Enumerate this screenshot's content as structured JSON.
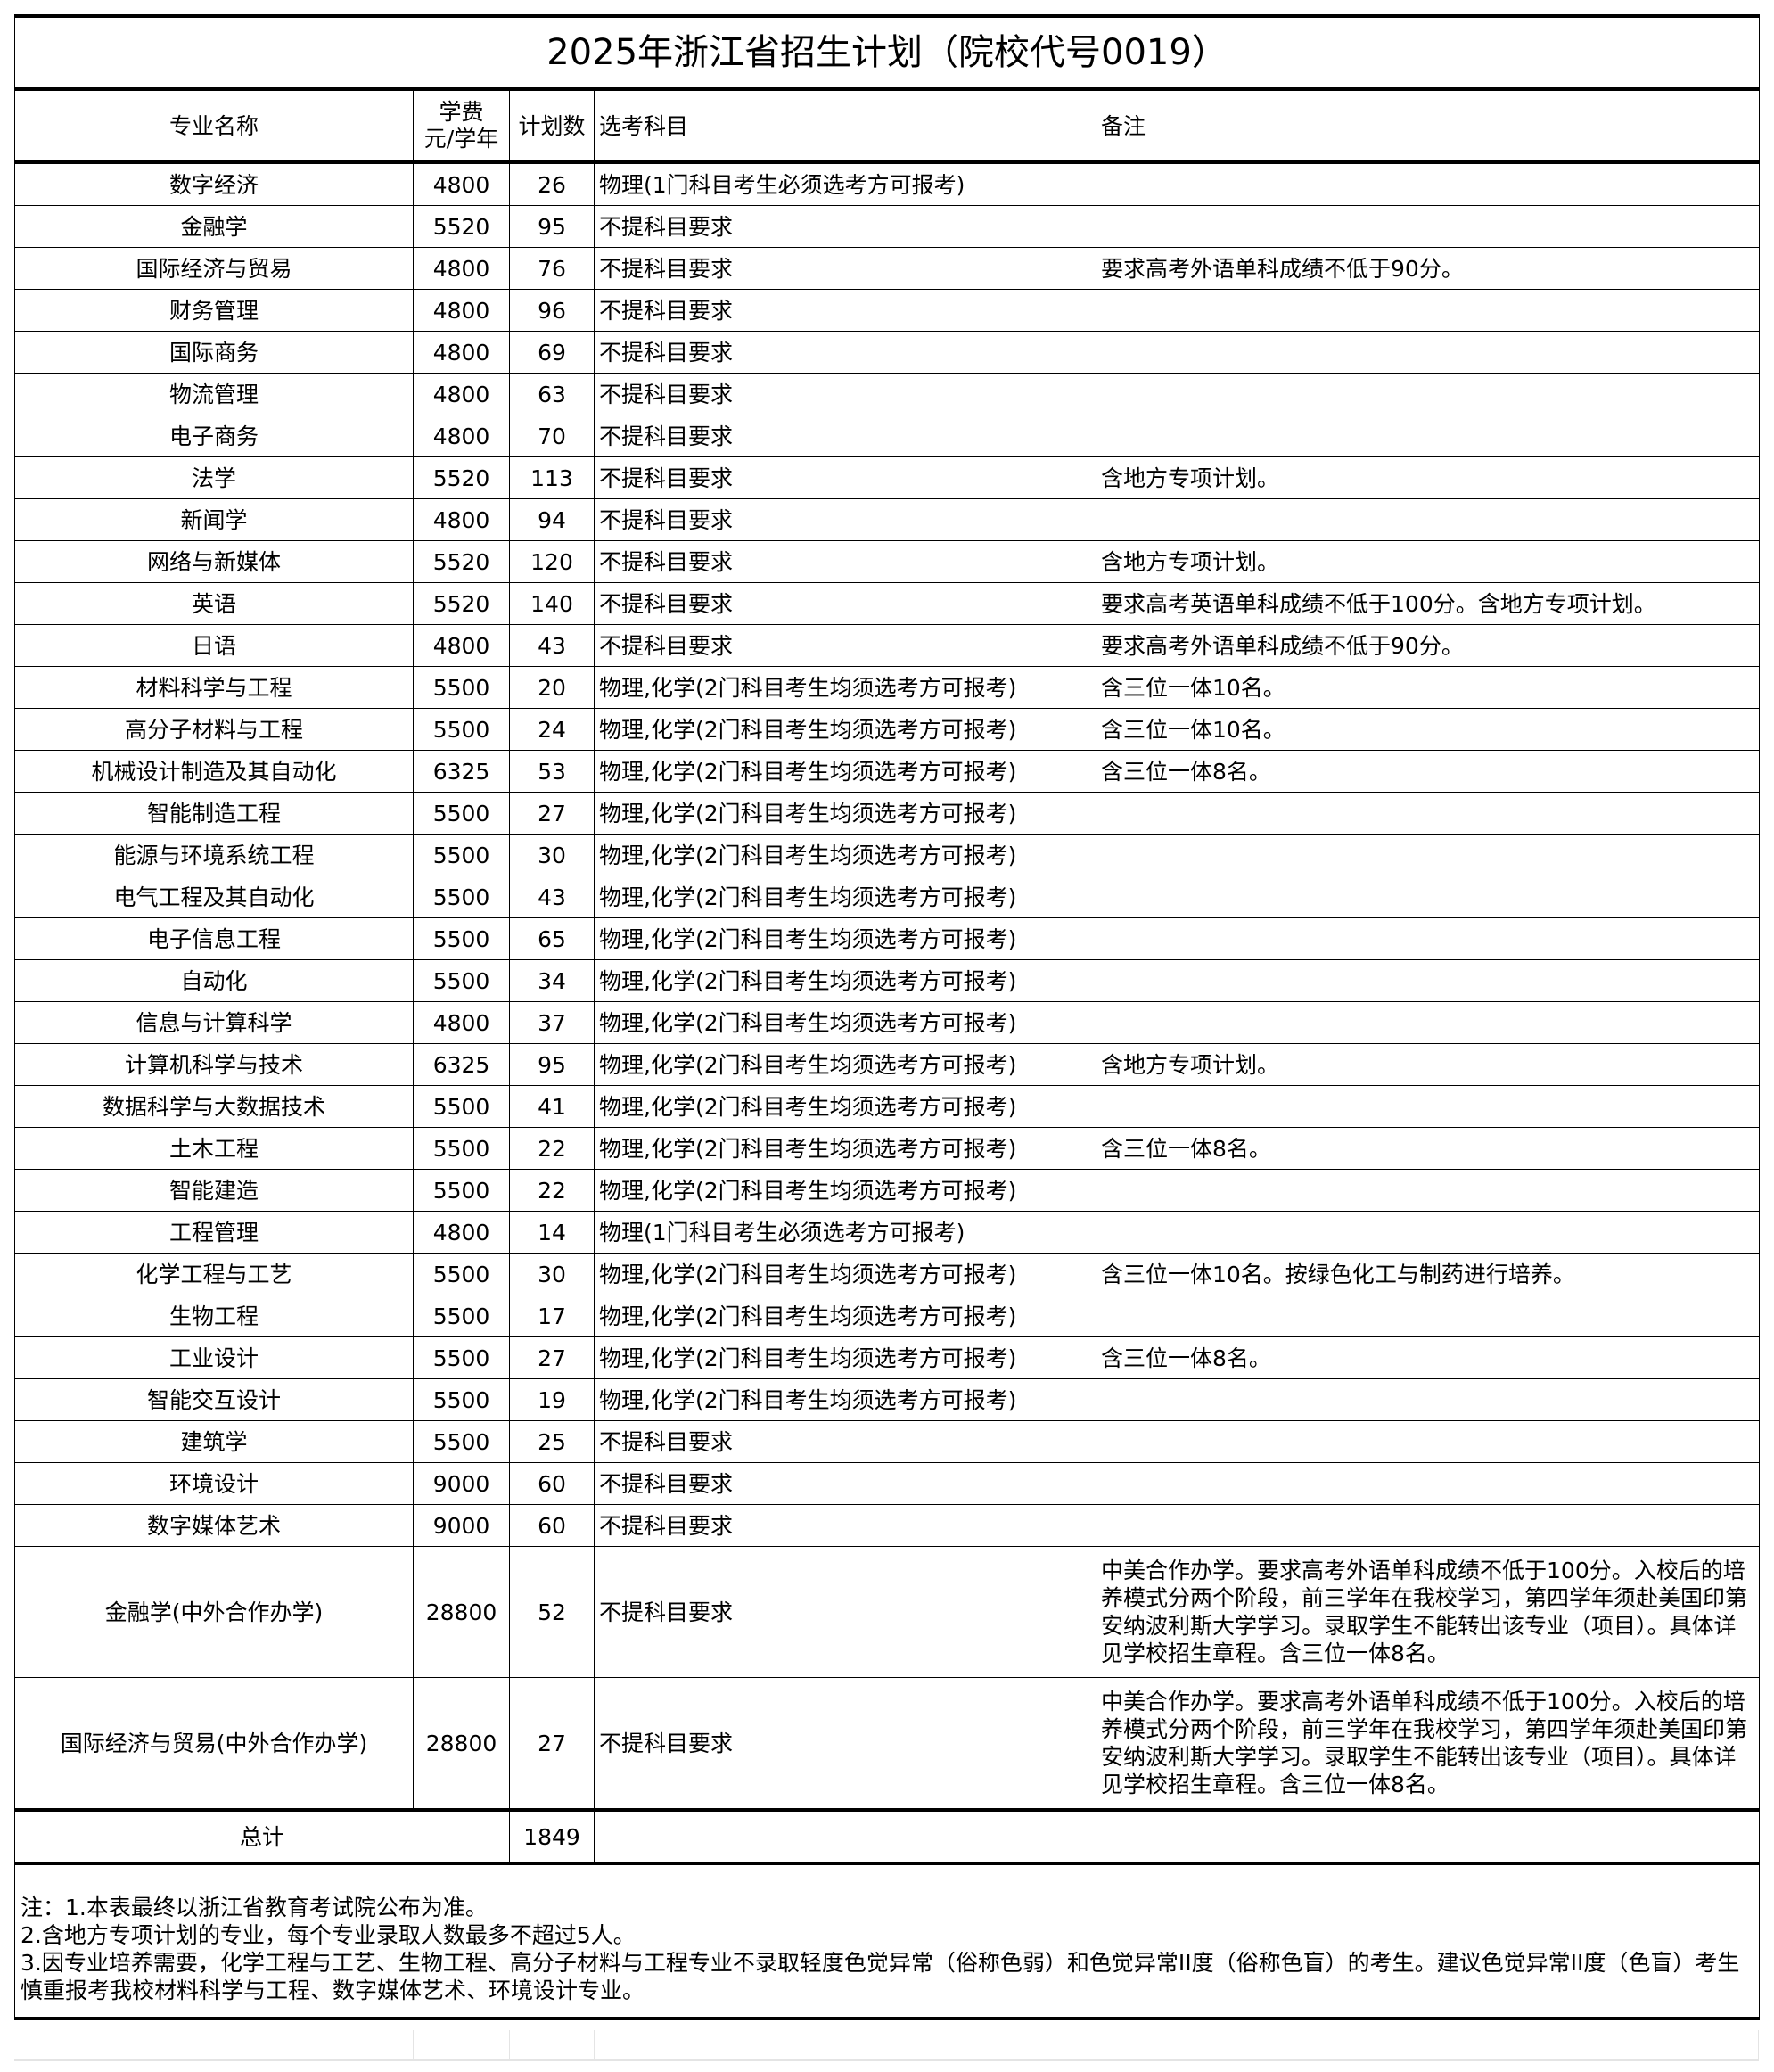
{
  "title": "2025年浙江省招生计划（院校代号0019）",
  "headers": {
    "major": "专业名称",
    "fee_line1": "学费",
    "fee_line2": "元/学年",
    "plan": "计划数",
    "subjects": "选考科目",
    "remarks": "备注"
  },
  "rows": [
    {
      "major": "数字经济",
      "fee": "4800",
      "plan": "26",
      "subjects": "物理(1门科目考生必须选考方可报考)",
      "remarks": ""
    },
    {
      "major": "金融学",
      "fee": "5520",
      "plan": "95",
      "subjects": "不提科目要求",
      "remarks": ""
    },
    {
      "major": "国际经济与贸易",
      "fee": "4800",
      "plan": "76",
      "subjects": "不提科目要求",
      "remarks": "要求高考外语单科成绩不低于90分。"
    },
    {
      "major": "财务管理",
      "fee": "4800",
      "plan": "96",
      "subjects": "不提科目要求",
      "remarks": ""
    },
    {
      "major": "国际商务",
      "fee": "4800",
      "plan": "69",
      "subjects": "不提科目要求",
      "remarks": ""
    },
    {
      "major": "物流管理",
      "fee": "4800",
      "plan": "63",
      "subjects": "不提科目要求",
      "remarks": ""
    },
    {
      "major": "电子商务",
      "fee": "4800",
      "plan": "70",
      "subjects": "不提科目要求",
      "remarks": ""
    },
    {
      "major": "法学",
      "fee": "5520",
      "plan": "113",
      "subjects": "不提科目要求",
      "remarks": "含地方专项计划。"
    },
    {
      "major": "新闻学",
      "fee": "4800",
      "plan": "94",
      "subjects": "不提科目要求",
      "remarks": ""
    },
    {
      "major": "网络与新媒体",
      "fee": "5520",
      "plan": "120",
      "subjects": "不提科目要求",
      "remarks": "含地方专项计划。"
    },
    {
      "major": "英语",
      "fee": "5520",
      "plan": "140",
      "subjects": "不提科目要求",
      "remarks": "要求高考英语单科成绩不低于100分。含地方专项计划。"
    },
    {
      "major": "日语",
      "fee": "4800",
      "plan": "43",
      "subjects": "不提科目要求",
      "remarks": "要求高考外语单科成绩不低于90分。"
    },
    {
      "major": "材料科学与工程",
      "fee": "5500",
      "plan": "20",
      "subjects": "物理,化学(2门科目考生均须选考方可报考)",
      "remarks": "含三位一体10名。"
    },
    {
      "major": "高分子材料与工程",
      "fee": "5500",
      "plan": "24",
      "subjects": "物理,化学(2门科目考生均须选考方可报考)",
      "remarks": "含三位一体10名。"
    },
    {
      "major": "机械设计制造及其自动化",
      "fee": "6325",
      "plan": "53",
      "subjects": "物理,化学(2门科目考生均须选考方可报考)",
      "remarks": "含三位一体8名。"
    },
    {
      "major": "智能制造工程",
      "fee": "5500",
      "plan": "27",
      "subjects": "物理,化学(2门科目考生均须选考方可报考)",
      "remarks": ""
    },
    {
      "major": "能源与环境系统工程",
      "fee": "5500",
      "plan": "30",
      "subjects": "物理,化学(2门科目考生均须选考方可报考)",
      "remarks": ""
    },
    {
      "major": "电气工程及其自动化",
      "fee": "5500",
      "plan": "43",
      "subjects": "物理,化学(2门科目考生均须选考方可报考)",
      "remarks": ""
    },
    {
      "major": "电子信息工程",
      "fee": "5500",
      "plan": "65",
      "subjects": "物理,化学(2门科目考生均须选考方可报考)",
      "remarks": ""
    },
    {
      "major": "自动化",
      "fee": "5500",
      "plan": "34",
      "subjects": "物理,化学(2门科目考生均须选考方可报考)",
      "remarks": ""
    },
    {
      "major": "信息与计算科学",
      "fee": "4800",
      "plan": "37",
      "subjects": "物理,化学(2门科目考生均须选考方可报考)",
      "remarks": ""
    },
    {
      "major": "计算机科学与技术",
      "fee": "6325",
      "plan": "95",
      "subjects": "物理,化学(2门科目考生均须选考方可报考)",
      "remarks": "含地方专项计划。"
    },
    {
      "major": "数据科学与大数据技术",
      "fee": "5500",
      "plan": "41",
      "subjects": "物理,化学(2门科目考生均须选考方可报考)",
      "remarks": ""
    },
    {
      "major": "土木工程",
      "fee": "5500",
      "plan": "22",
      "subjects": "物理,化学(2门科目考生均须选考方可报考)",
      "remarks": "含三位一体8名。"
    },
    {
      "major": "智能建造",
      "fee": "5500",
      "plan": "22",
      "subjects": "物理,化学(2门科目考生均须选考方可报考)",
      "remarks": ""
    },
    {
      "major": "工程管理",
      "fee": "4800",
      "plan": "14",
      "subjects": "物理(1门科目考生必须选考方可报考)",
      "remarks": ""
    },
    {
      "major": "化学工程与工艺",
      "fee": "5500",
      "plan": "30",
      "subjects": "物理,化学(2门科目考生均须选考方可报考)",
      "remarks": "含三位一体10名。按绿色化工与制药进行培养。"
    },
    {
      "major": "生物工程",
      "fee": "5500",
      "plan": "17",
      "subjects": "物理,化学(2门科目考生均须选考方可报考)",
      "remarks": ""
    },
    {
      "major": "工业设计",
      "fee": "5500",
      "plan": "27",
      "subjects": "物理,化学(2门科目考生均须选考方可报考)",
      "remarks": "含三位一体8名。"
    },
    {
      "major": "智能交互设计",
      "fee": "5500",
      "plan": "19",
      "subjects": "物理,化学(2门科目考生均须选考方可报考)",
      "remarks": ""
    },
    {
      "major": "建筑学",
      "fee": "5500",
      "plan": "25",
      "subjects": "不提科目要求",
      "remarks": ""
    },
    {
      "major": "环境设计",
      "fee": "9000",
      "plan": "60",
      "subjects": "不提科目要求",
      "remarks": ""
    },
    {
      "major": "数字媒体艺术",
      "fee": "9000",
      "plan": "60",
      "subjects": "不提科目要求",
      "remarks": ""
    },
    {
      "major": "金融学(中外合作办学)",
      "fee": "28800",
      "plan": "52",
      "subjects": "不提科目要求",
      "remarks": "中美合作办学。要求高考外语单科成绩不低于100分。入校后的培养模式分两个阶段，前三学年在我校学习，第四学年须赴美国印第安纳波利斯大学学习。录取学生不能转出该专业（项目）。具体详见学校招生章程。含三位一体8名。",
      "tall": true
    },
    {
      "major": "国际经济与贸易(中外合作办学)",
      "fee": "28800",
      "plan": "27",
      "subjects": "不提科目要求",
      "remarks": "中美合作办学。要求高考外语单科成绩不低于100分。入校后的培养模式分两个阶段，前三学年在我校学习，第四学年须赴美国印第安纳波利斯大学学习。录取学生不能转出该专业（项目）。具体详见学校招生章程。含三位一体8名。",
      "tall": true
    }
  ],
  "total": {
    "label": "总计",
    "plan": "1849"
  },
  "notes": [
    "注：1.本表最终以浙江省教育考试院公布为准。",
    "2.含地方专项计划的专业，每个专业录取人数最多不超过5人。",
    "3.因专业培养需要，化学工程与工艺、生物工程、高分子材料与工程专业不录取轻度色觉异常（俗称色弱）和色觉异常II度（俗称色盲）的考生。建议色觉异常II度（色盲）考生慎重报考我校材料科学与工程、数字媒体艺术、环境设计专业。"
  ]
}
